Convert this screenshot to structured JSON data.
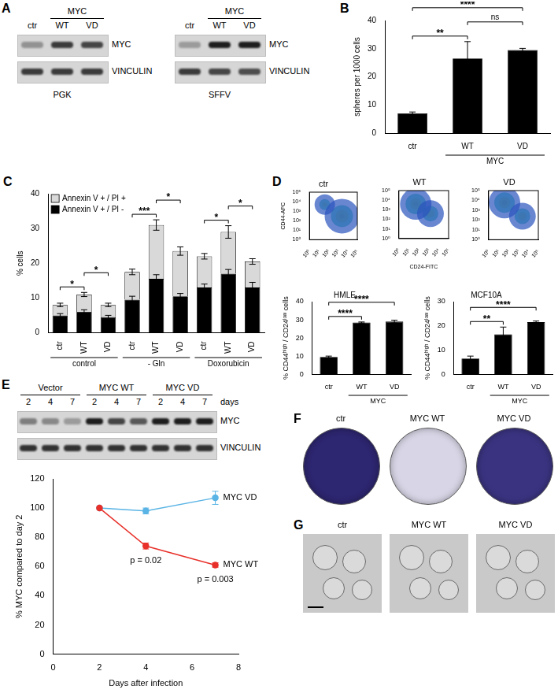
{
  "chart_data": [
    {
      "panel": "B",
      "type": "bar",
      "categories": [
        "ctr",
        "WT",
        "VD"
      ],
      "group_labels": [
        {
          "text": "MYC",
          "from": 1,
          "to": 2
        }
      ],
      "values": [
        7,
        26.5,
        29.5
      ],
      "errors": [
        0.5,
        6,
        0.6
      ],
      "color": "#000000",
      "ylabel": "spheres per 1000 cells",
      "ylim": [
        0,
        40
      ],
      "yticks": [
        0,
        10,
        20,
        30,
        40
      ],
      "grid": false,
      "significance": [
        {
          "from": 0,
          "to": 1,
          "label": "**"
        },
        {
          "from": 1,
          "to": 2,
          "label": "ns"
        },
        {
          "from": 0,
          "to": 2,
          "label": "****"
        }
      ]
    },
    {
      "panel": "C",
      "type": "bar",
      "stacked": true,
      "categories": [
        "ctr",
        "WT",
        "VD",
        "ctr",
        "WT",
        "VD",
        "ctr",
        "WT",
        "VD"
      ],
      "group_labels": [
        {
          "text": "control",
          "from": 0,
          "to": 2
        },
        {
          "text": "- Gln",
          "from": 3,
          "to": 5
        },
        {
          "text": "Doxorubicin",
          "from": 6,
          "to": 8
        }
      ],
      "series": [
        {
          "name": "Annexin V + / PI -",
          "color": "#000000",
          "values": [
            5,
            6,
            4.5,
            9.5,
            15.5,
            10.5,
            13,
            17,
            13
          ],
          "errors": [
            0.5,
            0.6,
            0.5,
            1,
            1.2,
            0.8,
            1,
            1.2,
            1.5
          ]
        },
        {
          "name": "Annexin V + / PI +",
          "color": "#d9d9d9",
          "values": [
            3,
            5,
            3.5,
            8,
            15.5,
            13,
            9,
            12,
            7.5
          ],
          "errors": [
            0.5,
            0.6,
            0.5,
            0.8,
            1.5,
            1.2,
            0.8,
            1.8,
            0.8
          ]
        }
      ],
      "legend": "top-left",
      "ylabel": "% cells",
      "ylim": [
        0,
        40
      ],
      "yticks": [
        0,
        10,
        20,
        30,
        40
      ],
      "grid": false,
      "significance": [
        {
          "from": 0,
          "to": 1,
          "label": "*"
        },
        {
          "from": 1,
          "to": 2,
          "label": "*"
        },
        {
          "from": 3,
          "to": 4,
          "label": "***"
        },
        {
          "from": 4,
          "to": 5,
          "label": "*"
        },
        {
          "from": 6,
          "to": 7,
          "label": "*"
        },
        {
          "from": 7,
          "to": 8,
          "label": "*"
        }
      ]
    },
    {
      "panel": "D",
      "type": "bubble",
      "title": "ctr",
      "ylabel": "CD44-APC",
      "log": true,
      "grid": false,
      "xlim": [
        1,
        100000
      ],
      "ylim": [
        1,
        100000
      ],
      "xticks": [
        {
          "value": 1,
          "label": "10⁰"
        },
        {
          "value": 10,
          "label": "10¹"
        },
        {
          "value": 100,
          "label": "10²"
        },
        {
          "value": 1000,
          "label": "10³"
        },
        {
          "value": 10000,
          "label": "10⁴"
        },
        {
          "value": 100000,
          "label": "10⁵"
        }
      ],
      "yticks": [
        {
          "value": 1,
          "label": "10⁰"
        },
        {
          "value": 10,
          "label": "10¹"
        },
        {
          "value": 100,
          "label": "10²"
        },
        {
          "value": 1000,
          "label": "10³"
        },
        {
          "value": 10000,
          "label": "10⁴"
        },
        {
          "value": 100000,
          "label": "10⁵"
        }
      ],
      "series": [
        {
          "color": "#2a52be",
          "values": [
            {
              "x": 2500,
              "y": 300,
              "r": 22
            },
            {
              "x": 40,
              "y": 5000,
              "r": 13
            }
          ]
        },
        {
          "color": "#2fbf9f",
          "values": [
            {
              "x": 2500,
              "y": 300,
              "r": 14
            },
            {
              "x": 40,
              "y": 5000,
              "r": 7
            }
          ]
        },
        {
          "color": "#f3d23a",
          "values": [
            {
              "x": 2500,
              "y": 300,
              "r": 8
            },
            {
              "x": 40,
              "y": 5000,
              "r": 3
            }
          ]
        },
        {
          "color": "#e0362c",
          "values": [
            {
              "x": 2500,
              "y": 300,
              "r": 3
            }
          ]
        }
      ]
    },
    {
      "type": "bubble",
      "title": "WT",
      "xlabel": "CD24-FITC",
      "log": true,
      "grid": false,
      "xlim": [
        1,
        100000
      ],
      "ylim": [
        1,
        100000
      ],
      "xticks": [
        {
          "value": 1,
          "label": "10⁰"
        },
        {
          "value": 10,
          "label": "10¹"
        },
        {
          "value": 100,
          "label": "10²"
        },
        {
          "value": 1000,
          "label": "10³"
        },
        {
          "value": 10000,
          "label": "10⁴"
        },
        {
          "value": 100000,
          "label": "10⁵"
        }
      ],
      "yticks": [
        {
          "value": 1,
          "label": "10⁰"
        },
        {
          "value": 10,
          "label": "10¹"
        },
        {
          "value": 100,
          "label": "10²"
        },
        {
          "value": 1000,
          "label": "10³"
        },
        {
          "value": 10000,
          "label": "10⁴"
        },
        {
          "value": 100000,
          "label": "10⁵"
        }
      ],
      "series": [
        {
          "color": "#2a52be",
          "values": [
            {
              "x": 50,
              "y": 4000,
              "r": 20
            },
            {
              "x": 1500,
              "y": 400,
              "r": 17
            }
          ]
        },
        {
          "color": "#2fbf9f",
          "values": [
            {
              "x": 50,
              "y": 4000,
              "r": 13
            },
            {
              "x": 1500,
              "y": 400,
              "r": 10
            }
          ]
        },
        {
          "color": "#f3d23a",
          "values": [
            {
              "x": 50,
              "y": 4000,
              "r": 7
            },
            {
              "x": 1500,
              "y": 400,
              "r": 5
            }
          ]
        },
        {
          "color": "#e0362c",
          "values": [
            {
              "x": 50,
              "y": 4000,
              "r": 3
            }
          ]
        }
      ]
    },
    {
      "type": "bubble",
      "title": "VD",
      "log": true,
      "grid": false,
      "xlim": [
        1,
        100000
      ],
      "ylim": [
        1,
        100000
      ],
      "xticks": [
        {
          "value": 1,
          "label": "10⁰"
        },
        {
          "value": 10,
          "label": "10¹"
        },
        {
          "value": 100,
          "label": "10²"
        },
        {
          "value": 1000,
          "label": "10³"
        },
        {
          "value": 10000,
          "label": "10⁴"
        },
        {
          "value": 100000,
          "label": "10⁵"
        }
      ],
      "yticks": [
        {
          "value": 1,
          "label": "10⁰"
        },
        {
          "value": 10,
          "label": "10¹"
        },
        {
          "value": 100,
          "label": "10²"
        },
        {
          "value": 1000,
          "label": "10³"
        },
        {
          "value": 10000,
          "label": "10⁴"
        },
        {
          "value": 100000,
          "label": "10⁵"
        }
      ],
      "series": [
        {
          "color": "#2a52be",
          "values": [
            {
              "x": 40,
              "y": 6000,
              "r": 20
            },
            {
              "x": 2500,
              "y": 250,
              "r": 17
            }
          ]
        },
        {
          "color": "#2fbf9f",
          "values": [
            {
              "x": 40,
              "y": 6000,
              "r": 13
            },
            {
              "x": 2500,
              "y": 250,
              "r": 10
            }
          ]
        },
        {
          "color": "#f3d23a",
          "values": [
            {
              "x": 40,
              "y": 6000,
              "r": 7
            },
            {
              "x": 2500,
              "y": 250,
              "r": 5
            }
          ]
        },
        {
          "color": "#e0362c",
          "values": [
            {
              "x": 40,
              "y": 6000,
              "r": 3
            }
          ]
        }
      ]
    },
    {
      "type": "bar",
      "title": "HMLE",
      "categories": [
        "ctr",
        "WT",
        "VD"
      ],
      "group_labels": [
        {
          "text": "MYC",
          "from": 1,
          "to": 2
        }
      ],
      "values": [
        9.5,
        28.5,
        29
      ],
      "errors": [
        0.5,
        0.3,
        0.8
      ],
      "color": "#000000",
      "ylabel": "% CD44ʰⁱᵍʰ / CD24ˡᵒʷ cells",
      "ylim": [
        0,
        40
      ],
      "yticks": [
        0,
        10,
        20,
        30,
        40
      ],
      "grid": false,
      "significance": [
        {
          "from": 0,
          "to": 1,
          "label": "****"
        },
        {
          "from": 0,
          "to": 2,
          "label": "****"
        }
      ]
    },
    {
      "type": "bar",
      "title": "MCF10A",
      "categories": [
        "ctr",
        "WT",
        "VD"
      ],
      "group_labels": [
        {
          "text": "MYC",
          "from": 1,
          "to": 2
        }
      ],
      "values": [
        6.5,
        16.5,
        21.5
      ],
      "errors": [
        1,
        3,
        0.5
      ],
      "color": "#000000",
      "ylabel": "% CD44ʰⁱᵍʰ / CD24ˡᵒʷ cells",
      "ylim": [
        0,
        30
      ],
      "yticks": [
        0,
        10,
        20,
        30
      ],
      "grid": false,
      "significance": [
        {
          "from": 0,
          "to": 1,
          "label": "**"
        },
        {
          "from": 0,
          "to": 2,
          "label": "****"
        }
      ]
    },
    {
      "type": "line",
      "x": [
        2,
        4,
        7
      ],
      "series": [
        {
          "name": "MYC WT",
          "color": "#e8302a",
          "values": [
            100,
            74,
            61
          ],
          "errors": [
            0,
            2,
            1.5
          ]
        },
        {
          "name": "MYC VD",
          "color": "#5ab4e5",
          "values": [
            100,
            98,
            107
          ],
          "errors": [
            0,
            2,
            4.5
          ]
        }
      ],
      "marker": "circle",
      "grid": false,
      "xlim": [
        0,
        8
      ],
      "xticks": [
        0,
        2,
        4,
        6,
        8
      ],
      "ylim": [
        0,
        120
      ],
      "yticks": [
        0,
        20,
        40,
        60,
        80,
        100,
        120
      ],
      "xlabel": "Days after infection",
      "ylabel": "% MYC compared to day 2",
      "annotations": [
        {
          "text": "p = 0.02",
          "x": 4,
          "y": 64
        },
        {
          "text": "p = 0.003",
          "x": 7,
          "y": 51
        }
      ]
    }
  ],
  "blots": [
    {
      "panel": "A",
      "caption": "PGK",
      "groups": [
        {
          "text": "MYC",
          "from": 1,
          "to": 2
        }
      ],
      "lanes": [
        "ctr",
        "WT",
        "VD"
      ],
      "rows": [
        {
          "name": "MYC",
          "intensity": [
            0.35,
            0.8,
            0.75
          ]
        },
        {
          "name": "VINCULIN",
          "intensity": [
            0.8,
            0.8,
            0.8
          ]
        }
      ]
    },
    {
      "caption": "SFFV",
      "groups": [
        {
          "text": "MYC",
          "from": 1,
          "to": 2
        }
      ],
      "lanes": [
        "ctr",
        "WT",
        "VD"
      ],
      "rows": [
        {
          "name": "MYC",
          "intensity": [
            0.3,
            0.95,
            0.95
          ]
        },
        {
          "name": "VINCULIN",
          "intensity": [
            0.8,
            0.75,
            0.7
          ]
        }
      ]
    },
    {
      "panel": "E",
      "groups": [
        {
          "text": "Vector",
          "from": 0,
          "to": 2
        },
        {
          "text": "MYC WT",
          "from": 3,
          "to": 5
        },
        {
          "text": "MYC VD",
          "from": 6,
          "to": 8
        }
      ],
      "lanes": [
        "2",
        "4",
        "7",
        "2",
        "4",
        "7",
        "2",
        "4",
        "7"
      ],
      "lane_note": "days",
      "rows": [
        {
          "name": "MYC",
          "intensity": [
            0.45,
            0.4,
            0.3,
            0.95,
            0.75,
            0.65,
            0.95,
            0.95,
            0.95
          ]
        },
        {
          "name": "VINCULIN",
          "intensity": [
            0.85,
            0.85,
            0.85,
            0.85,
            0.85,
            0.85,
            0.85,
            0.85,
            0.85
          ]
        }
      ]
    }
  ],
  "wells": {
    "panel": "F",
    "labels": [
      "ctr",
      "MYC WT",
      "MYC VD"
    ],
    "colors": [
      "#2d2670",
      "#d8d6e6",
      "#3a3380"
    ]
  },
  "images": {
    "panel": "G",
    "labels": [
      "ctr",
      "MYC WT",
      "MYC VD"
    ]
  }
}
